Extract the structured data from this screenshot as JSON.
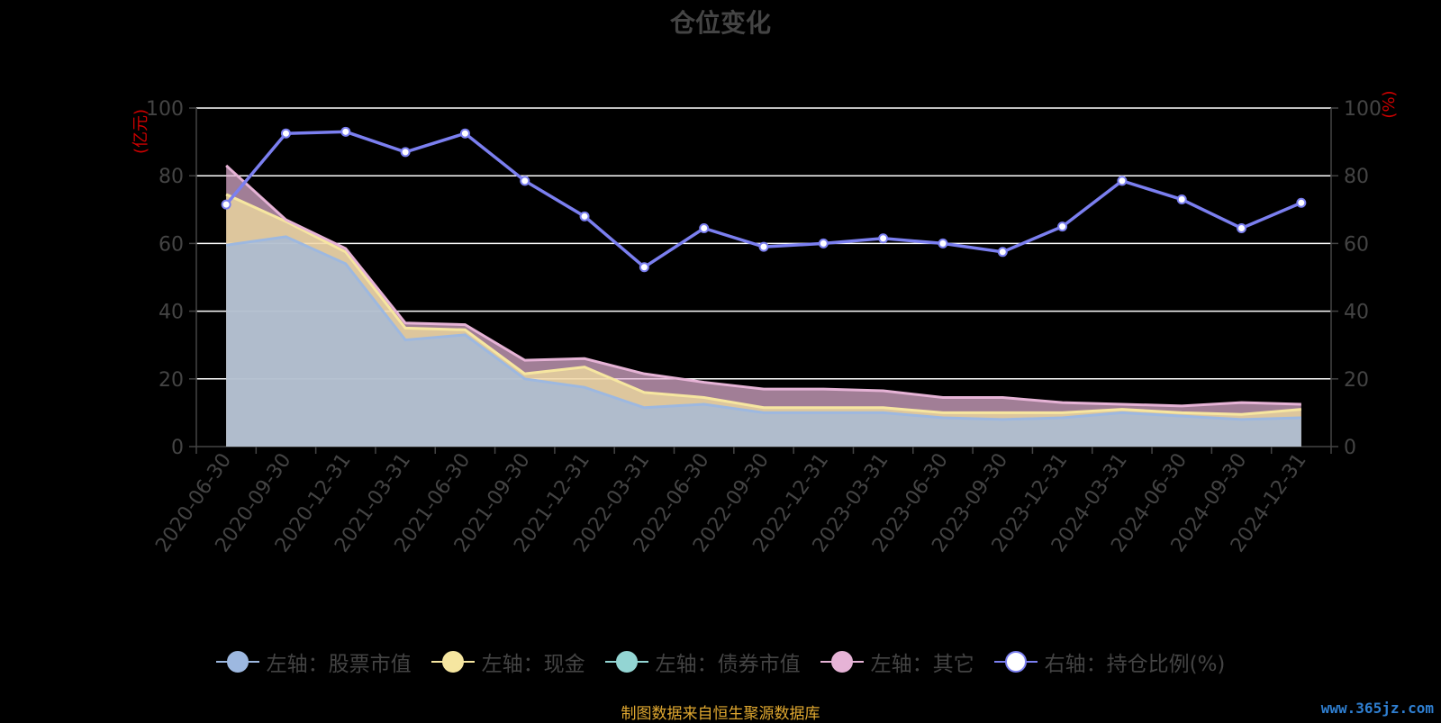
{
  "chart_data": {
    "type": "area",
    "title": "仓位变化",
    "categories": [
      "2020-06-30",
      "2020-09-30",
      "2020-12-31",
      "2021-03-31",
      "2021-06-30",
      "2021-09-30",
      "2021-12-31",
      "2022-03-31",
      "2022-06-30",
      "2022-09-30",
      "2022-12-31",
      "2023-03-31",
      "2023-06-30",
      "2023-09-30",
      "2023-12-31",
      "2024-03-31",
      "2024-06-30",
      "2024-09-30",
      "2024-12-31"
    ],
    "ylabel_left": "(亿元)",
    "ylabel_right": "(%)",
    "ylim_left": [
      0,
      100
    ],
    "ylim_right": [
      0,
      100
    ],
    "yticks": [
      0,
      20,
      40,
      60,
      80,
      100
    ],
    "grid": true,
    "legend_position": "bottom",
    "stacked": true,
    "series": [
      {
        "name": "左轴：股票市值",
        "axis": "left",
        "type": "area",
        "color": "#9db8e0",
        "values": [
          59.5,
          62,
          54,
          31.5,
          33,
          20,
          17.5,
          11.5,
          12.5,
          10,
          10,
          10,
          8.5,
          8,
          8.5,
          10,
          9,
          8,
          8.5
        ]
      },
      {
        "name": "左轴：现金",
        "axis": "left",
        "type": "area",
        "color": "#f6e6a0",
        "values": [
          15,
          4.5,
          3.5,
          3.5,
          1.5,
          1.5,
          6,
          4.5,
          2,
          1.5,
          1.5,
          1.5,
          1.5,
          2,
          1.5,
          1,
          1,
          1.5,
          2.5
        ]
      },
      {
        "name": "左轴：债券市值",
        "axis": "left",
        "type": "area",
        "color": "#93d5d3",
        "values": [
          0,
          0,
          0,
          0,
          0,
          0,
          0,
          0,
          0,
          0,
          0,
          0,
          0,
          0,
          0,
          0,
          0,
          0,
          0
        ]
      },
      {
        "name": "左轴：其它",
        "axis": "left",
        "type": "area",
        "color": "#e6b3d6",
        "values": [
          8.5,
          0.5,
          1,
          1.5,
          1.5,
          4,
          2.5,
          5.5,
          4.5,
          5.5,
          5.5,
          5,
          4.5,
          4.5,
          3,
          1.5,
          2,
          3.5,
          1.5
        ]
      },
      {
        "name": "右轴：持仓比例(%)",
        "axis": "right",
        "type": "line",
        "color": "#7b7ff0",
        "values": [
          71.5,
          92.5,
          93,
          87,
          92.5,
          78.5,
          68,
          53,
          64.5,
          59,
          60,
          61.5,
          60,
          57.5,
          65,
          78.5,
          73,
          64.5,
          72
        ]
      }
    ]
  },
  "source_text": "制图数据来自恒生聚源数据库",
  "watermark": "www.365jz.com",
  "colors": {
    "background": "#000000",
    "axis_text": "#444444",
    "axis_name": "#cc0000",
    "gridline": "#ffffff",
    "source_text": "#e0a830",
    "watermark": "#2f7fd1"
  }
}
